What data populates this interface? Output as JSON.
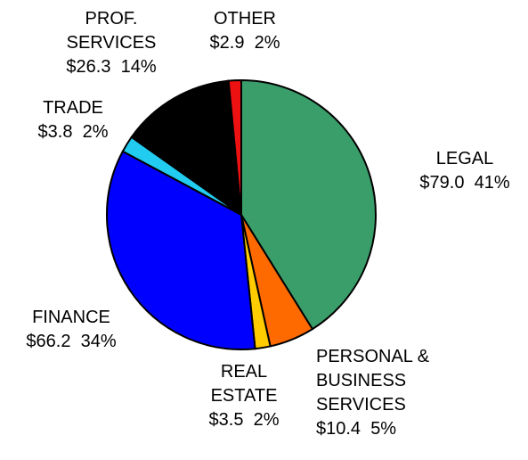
{
  "chart_data": {
    "type": "pie",
    "categories": [
      "LEGAL",
      "PERSONAL &\nBUSINESS\nSERVICES",
      "REAL\nESTATE",
      "FINANCE",
      "TRADE",
      "PROF.\nSERVICES",
      "OTHER"
    ],
    "values": [
      79.0,
      10.4,
      3.5,
      66.2,
      3.8,
      26.3,
      2.9
    ],
    "value_labels": [
      "$79.0",
      "$10.4",
      "$3.5",
      "$66.2",
      "$3.8",
      "$26.3",
      "$2.9"
    ],
    "percent_labels": [
      "41%",
      "5%",
      "2%",
      "34%",
      "2%",
      "14%",
      "2%"
    ],
    "colors": [
      "#3a9e6a",
      "#ff6a00",
      "#ffcc00",
      "#0000ff",
      "#22ccf0",
      "#000000",
      "#ee1111"
    ]
  }
}
